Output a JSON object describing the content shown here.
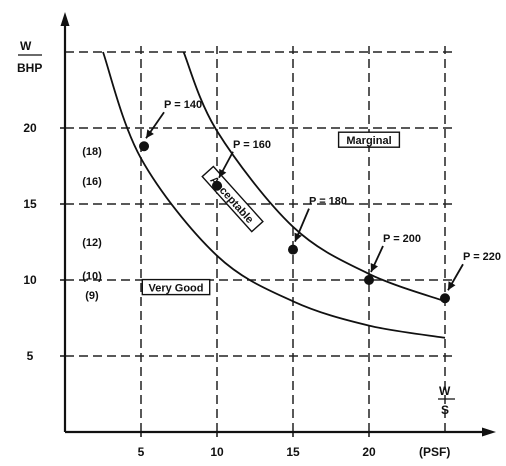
{
  "chart_data": {
    "type": "scatter",
    "xlabel": {
      "numerator": "W",
      "denominator": "S",
      "unit": "(PSF)"
    },
    "ylabel": {
      "numerator": "W",
      "denominator": "BHP"
    },
    "xlim": [
      0,
      25
    ],
    "ylim": [
      0,
      25
    ],
    "x_ticks": [
      5,
      10,
      15,
      20
    ],
    "y_ticks": [
      5,
      10,
      15,
      20
    ],
    "grid": true,
    "grid_style": "dashed",
    "secondary_y_labels": [
      {
        "y": 18.5,
        "label": "(18)"
      },
      {
        "y": 16.5,
        "label": "(16)"
      },
      {
        "y": 12.5,
        "label": "(12)"
      },
      {
        "y": 10.3,
        "label": "(10)"
      },
      {
        "y": 9.0,
        "label": "(9)"
      }
    ],
    "points": [
      {
        "x": 5.2,
        "y": 18.8,
        "label": "P = 140"
      },
      {
        "x": 10.0,
        "y": 16.2,
        "label": "P = 160"
      },
      {
        "x": 15.0,
        "y": 12.0,
        "label": "P = 180"
      },
      {
        "x": 20.0,
        "y": 10.0,
        "label": "P = 200"
      },
      {
        "x": 25.0,
        "y": 8.8,
        "label": "P = 220"
      }
    ],
    "curves": [
      {
        "x": [
          2.5,
          5.0,
          10.0,
          15.0,
          20.0,
          25.0
        ],
        "y": [
          25.0,
          18.0,
          11.6,
          8.6,
          7.0,
          6.2
        ]
      },
      {
        "x": [
          7.8,
          10.0,
          15.0,
          20.0,
          25.0
        ],
        "y": [
          25.0,
          19.8,
          13.5,
          10.4,
          8.6
        ]
      }
    ],
    "region_labels": [
      {
        "text": "Marginal",
        "x": 20.0,
        "y": 19.2,
        "rotation": 0
      },
      {
        "text": "Acceptable",
        "x": 11.0,
        "y": 15.3,
        "rotation": 48
      },
      {
        "text": "Very Good",
        "x": 7.3,
        "y": 9.5,
        "rotation": 0
      }
    ]
  }
}
